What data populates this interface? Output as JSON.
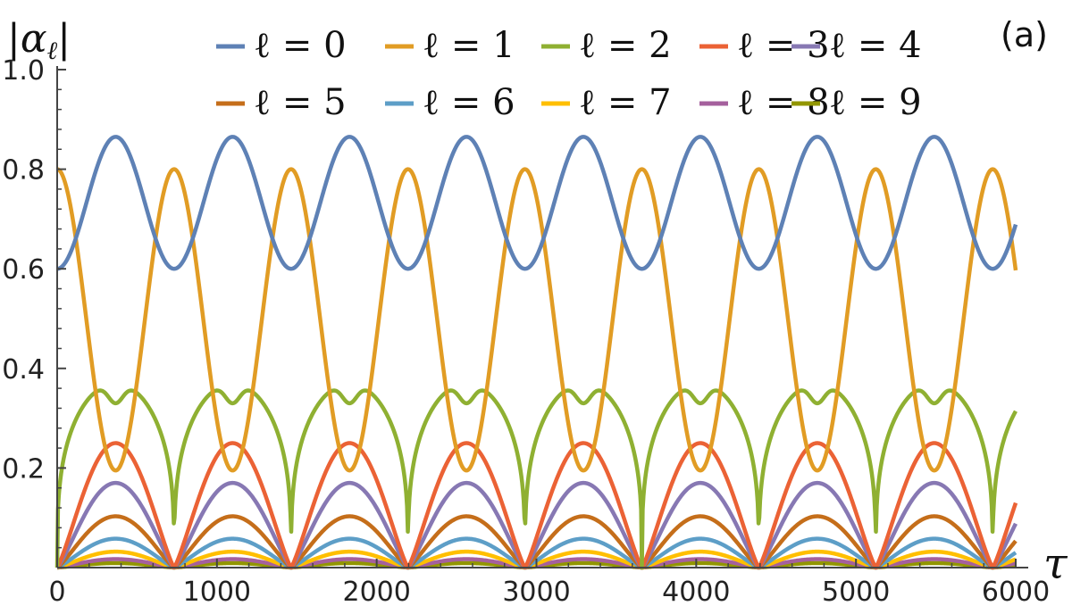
{
  "chart_data": {
    "type": "line",
    "panel_label": "(a)",
    "ylabel": "|α_ℓ|",
    "xlabel": "τ",
    "xlim": [
      0,
      6000
    ],
    "ylim": [
      0,
      1.0
    ],
    "x_ticks": [
      0,
      1000,
      2000,
      3000,
      4000,
      5000,
      6000
    ],
    "x_tick_labels": [
      "0",
      "1000",
      "2000",
      "3000",
      "4000",
      "5000",
      "6000"
    ],
    "y_ticks": [
      0.2,
      0.4,
      0.6,
      0.8,
      1.0
    ],
    "y_tick_labels": [
      "0.2",
      "0.4",
      "0.6",
      "0.8",
      "1.0"
    ],
    "grid": false,
    "legend_position": "top",
    "period_major": 732,
    "series": [
      {
        "name": "ℓ = 0",
        "color": "#5E81B5",
        "shape": "sine",
        "min": 0.6,
        "max": 0.865,
        "start": 0.6
      },
      {
        "name": "ℓ = 1",
        "color": "#E19C24",
        "shape": "cosine",
        "min": 0.195,
        "max": 0.8,
        "start": 0.8
      },
      {
        "name": "ℓ = 2",
        "color": "#8FB032",
        "shape": "double-hump",
        "peak": 0.37,
        "trough": 0.33,
        "min": 0.0
      },
      {
        "name": "ℓ = 3",
        "color": "#EB6235",
        "shape": "hump",
        "max": 0.25,
        "min": 0.0
      },
      {
        "name": "ℓ = 4",
        "color": "#8778B3",
        "shape": "hump",
        "max": 0.17,
        "min": 0.0
      },
      {
        "name": "ℓ = 5",
        "color": "#C56E1A",
        "shape": "hump",
        "max": 0.103,
        "min": 0.0
      },
      {
        "name": "ℓ = 6",
        "color": "#5D9EC7",
        "shape": "hump",
        "max": 0.058,
        "min": 0.0
      },
      {
        "name": "ℓ = 7",
        "color": "#FFBF00",
        "shape": "hump",
        "max": 0.032,
        "min": 0.0
      },
      {
        "name": "ℓ = 8",
        "color": "#A5609D",
        "shape": "hump",
        "max": 0.017,
        "min": 0.0
      },
      {
        "name": "ℓ = 9",
        "color": "#929600",
        "shape": "hump",
        "max": 0.009,
        "min": 0.0
      }
    ]
  }
}
